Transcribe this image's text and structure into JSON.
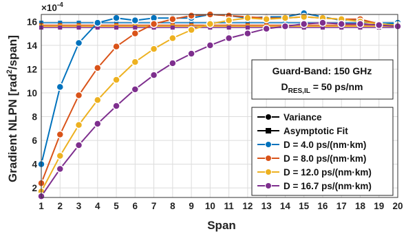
{
  "chart_data": {
    "type": "line",
    "xlabel": "Span",
    "ylabel_main": "Gradient NLPN [rad",
    "ylabel_sup": "2",
    "ylabel_tail": "/span]",
    "y_multiplier_base": "×10",
    "y_multiplier_exp": "-4",
    "xlim": [
      1,
      20
    ],
    "ylim": [
      1.2,
      16.6
    ],
    "x_ticks": [
      1,
      2,
      3,
      4,
      5,
      6,
      7,
      8,
      9,
      10,
      11,
      12,
      13,
      14,
      15,
      16,
      17,
      18,
      19,
      20
    ],
    "y_ticks": [
      2,
      4,
      6,
      8,
      10,
      12,
      14,
      16
    ],
    "grid": true,
    "annotation": {
      "line1": "Guard-Band: 150 GHz",
      "line2_main": "D",
      "line2_sub": "RES,IL",
      "line2_tail": " = 50 ps/nm"
    },
    "legend_position": "bottom-right",
    "legend_entries": [
      "Variance",
      "Asymptotic Fit",
      "D = 4.0 ps/(nm·km)",
      "D = 8.0 ps/(nm·km)",
      "D = 12.0 ps/(nm·km)",
      "D = 16.7 ps/(nm·km)"
    ],
    "x": [
      1,
      2,
      3,
      4,
      5,
      6,
      7,
      8,
      9,
      10,
      11,
      12,
      13,
      14,
      15,
      16,
      17,
      18,
      19,
      20
    ],
    "series": [
      {
        "color": "#0072BD",
        "variance": [
          4.0,
          10.5,
          14.2,
          15.9,
          16.3,
          16.1,
          16.3,
          16.3,
          16.3,
          16.6,
          16.5,
          16.3,
          16.4,
          16.4,
          16.7,
          16.4,
          16.1,
          16.2,
          15.7,
          15.9
        ],
        "fit": 15.9
      },
      {
        "color": "#D95319",
        "variance": [
          2.4,
          6.5,
          9.8,
          12.1,
          13.9,
          15.0,
          15.8,
          16.2,
          16.5,
          16.6,
          16.5,
          16.4,
          16.3,
          16.3,
          16.4,
          16.3,
          16.2,
          16.2,
          15.8,
          15.6
        ],
        "fit": 15.7
      },
      {
        "color": "#EDB120",
        "variance": [
          1.7,
          4.7,
          7.3,
          9.4,
          11.1,
          12.6,
          13.7,
          14.6,
          15.3,
          15.8,
          16.1,
          16.3,
          16.2,
          16.3,
          16.4,
          16.3,
          16.2,
          16.0,
          15.8,
          15.7
        ],
        "fit": 15.6
      },
      {
        "color": "#7E2F8E",
        "variance": [
          1.3,
          3.6,
          5.6,
          7.4,
          8.9,
          10.3,
          11.5,
          12.5,
          13.3,
          14.0,
          14.6,
          15.0,
          15.4,
          15.6,
          15.8,
          15.9,
          15.8,
          15.8,
          15.7,
          15.6
        ],
        "fit": 15.5
      }
    ]
  }
}
